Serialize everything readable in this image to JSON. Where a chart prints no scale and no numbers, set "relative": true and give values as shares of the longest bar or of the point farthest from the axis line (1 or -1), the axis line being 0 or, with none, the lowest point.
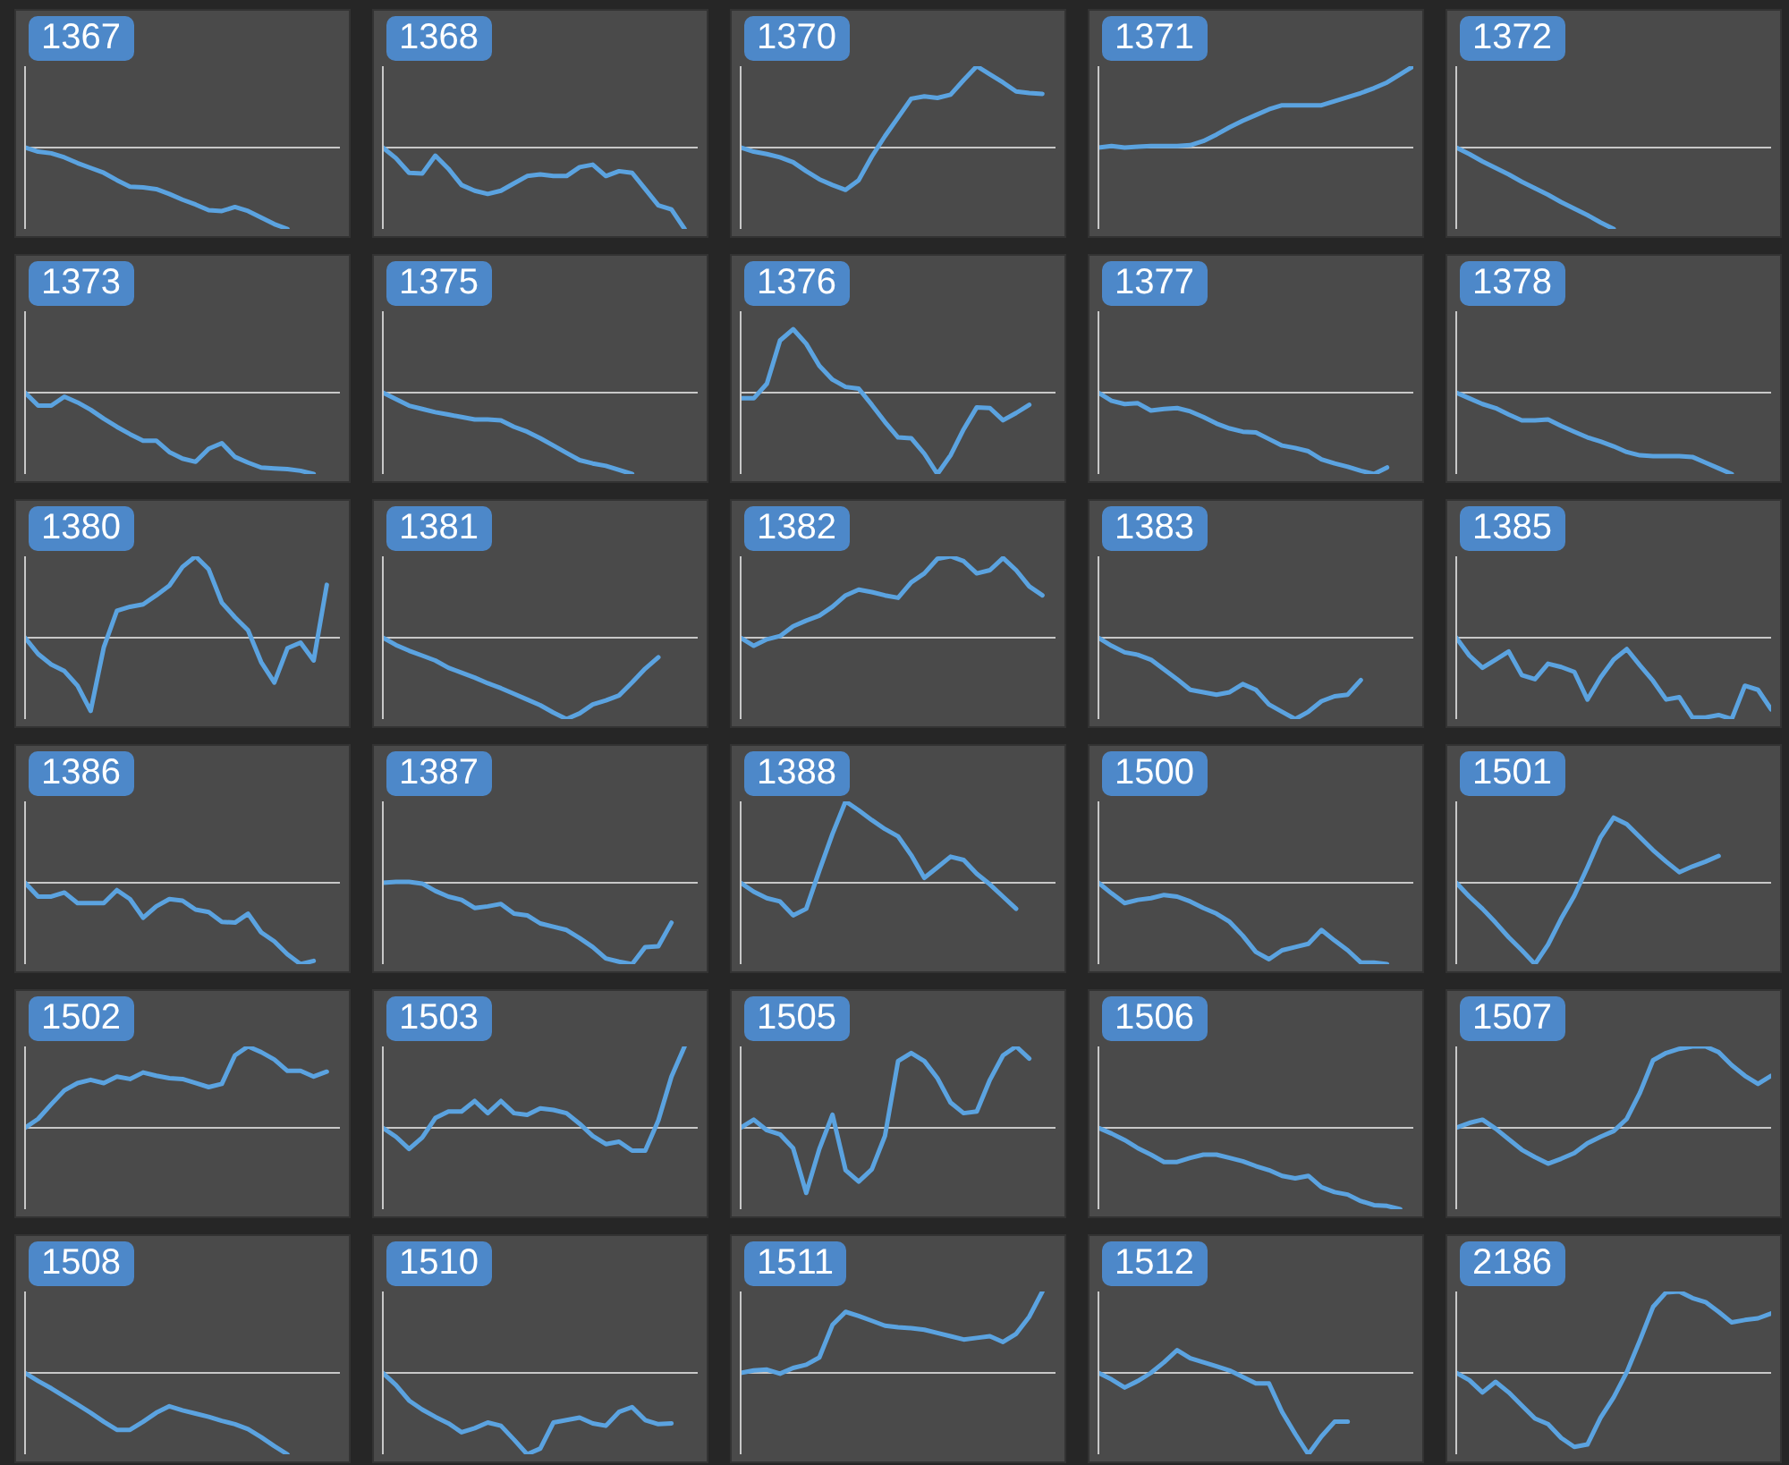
{
  "chart_data": [
    {
      "type": "line",
      "title": "1367",
      "relative": true,
      "color": "#5ba3e0",
      "categories": [
        null,
        null,
        null,
        null,
        null,
        null,
        null,
        null,
        null,
        null,
        null,
        null,
        null,
        null,
        null,
        null,
        null,
        null,
        null,
        null,
        null,
        null,
        null,
        null,
        null
      ],
      "values": [
        0,
        -0.05,
        -0.07,
        -0.12,
        -0.19,
        -0.25,
        -0.31,
        -0.4,
        -0.48,
        -0.49,
        -0.51,
        -0.57,
        -0.64,
        -0.7,
        -0.77,
        -0.78,
        -0.73,
        -0.78,
        -0.86,
        -0.94,
        -1,
        null,
        null,
        null,
        null
      ]
    },
    {
      "type": "line",
      "title": "1368",
      "relative": true,
      "color": "#5ba3e0",
      "categories": [
        null,
        null,
        null,
        null,
        null,
        null,
        null,
        null,
        null,
        null,
        null,
        null,
        null,
        null,
        null,
        null,
        null,
        null,
        null,
        null,
        null,
        null,
        null,
        null,
        null
      ],
      "values": [
        0,
        -0.13,
        -0.31,
        -0.32,
        -0.1,
        -0.26,
        -0.46,
        -0.53,
        -0.57,
        -0.53,
        -0.44,
        -0.35,
        -0.33,
        -0.35,
        -0.35,
        -0.24,
        -0.21,
        -0.35,
        -0.29,
        -0.31,
        -0.51,
        -0.71,
        -0.76,
        -1,
        null
      ]
    },
    {
      "type": "line",
      "title": "1370",
      "relative": true,
      "color": "#5ba3e0",
      "categories": [
        null,
        null,
        null,
        null,
        null,
        null,
        null,
        null,
        null,
        null,
        null,
        null,
        null,
        null,
        null,
        null,
        null,
        null,
        null,
        null,
        null,
        null,
        null,
        null,
        null
      ],
      "values": [
        0,
        -0.05,
        -0.08,
        -0.12,
        -0.18,
        -0.29,
        -0.39,
        -0.46,
        -0.52,
        -0.4,
        -0.11,
        0.14,
        0.37,
        0.6,
        0.63,
        0.61,
        0.65,
        0.83,
        1,
        0.9,
        0.8,
        0.69,
        0.67,
        0.66,
        null
      ]
    },
    {
      "type": "line",
      "title": "1371",
      "relative": true,
      "color": "#5ba3e0",
      "categories": [
        null,
        null,
        null,
        null,
        null,
        null,
        null,
        null,
        null,
        null,
        null,
        null,
        null,
        null,
        null,
        null,
        null,
        null,
        null,
        null,
        null,
        null,
        null,
        null,
        null
      ],
      "values": [
        0,
        0.02,
        0,
        0.01,
        0.02,
        0.02,
        0.02,
        0.03,
        0.08,
        0.16,
        0.25,
        0.33,
        0.4,
        0.47,
        0.52,
        0.52,
        0.52,
        0.52,
        0.57,
        0.62,
        0.67,
        0.73,
        0.8,
        0.9,
        1
      ]
    },
    {
      "type": "line",
      "title": "1372",
      "relative": true,
      "color": "#5ba3e0",
      "categories": [
        null,
        null,
        null,
        null,
        null,
        null,
        null,
        null,
        null,
        null,
        null,
        null,
        null,
        null,
        null,
        null,
        null,
        null,
        null,
        null,
        null,
        null,
        null,
        null,
        null
      ],
      "values": [
        0,
        -0.08,
        -0.17,
        -0.25,
        -0.33,
        -0.42,
        -0.5,
        -0.58,
        -0.67,
        -0.75,
        -0.83,
        -0.92,
        -1,
        null,
        null,
        null,
        null,
        null,
        null,
        null,
        null,
        null,
        null,
        null,
        null
      ]
    },
    {
      "type": "line",
      "title": "1373",
      "relative": true,
      "color": "#5ba3e0",
      "categories": [
        null,
        null,
        null,
        null,
        null,
        null,
        null,
        null,
        null,
        null,
        null,
        null,
        null,
        null,
        null,
        null,
        null,
        null,
        null,
        null,
        null,
        null,
        null,
        null,
        null
      ],
      "values": [
        0,
        -0.16,
        -0.16,
        -0.05,
        -0.12,
        -0.21,
        -0.32,
        -0.42,
        -0.51,
        -0.59,
        -0.59,
        -0.73,
        -0.81,
        -0.85,
        -0.69,
        -0.62,
        -0.79,
        -0.86,
        -0.92,
        -0.93,
        -0.94,
        -0.96,
        -1,
        null,
        null
      ]
    },
    {
      "type": "line",
      "title": "1375",
      "relative": true,
      "color": "#5ba3e0",
      "categories": [
        null,
        null,
        null,
        null,
        null,
        null,
        null,
        null,
        null,
        null,
        null,
        null,
        null,
        null,
        null,
        null,
        null,
        null,
        null,
        null,
        null,
        null,
        null,
        null,
        null
      ],
      "values": [
        0,
        -0.08,
        -0.16,
        -0.2,
        -0.24,
        -0.27,
        -0.3,
        -0.33,
        -0.33,
        -0.34,
        -0.42,
        -0.48,
        -0.56,
        -0.65,
        -0.74,
        -0.83,
        -0.87,
        -0.9,
        -0.95,
        -1,
        null,
        null,
        null,
        null,
        null
      ]
    },
    {
      "type": "line",
      "title": "1376",
      "relative": true,
      "color": "#5ba3e0",
      "categories": [
        null,
        null,
        null,
        null,
        null,
        null,
        null,
        null,
        null,
        null,
        null,
        null,
        null,
        null,
        null,
        null,
        null,
        null,
        null,
        null,
        null,
        null,
        null,
        null,
        null
      ],
      "values": [
        -0.07,
        -0.07,
        0.11,
        0.64,
        0.78,
        0.6,
        0.33,
        0.16,
        0.07,
        0.05,
        -0.15,
        -0.36,
        -0.55,
        -0.56,
        -0.75,
        -1,
        -0.77,
        -0.45,
        -0.18,
        -0.19,
        -0.34,
        -0.25,
        -0.15,
        null,
        null
      ]
    },
    {
      "type": "line",
      "title": "1377",
      "relative": true,
      "color": "#5ba3e0",
      "categories": [
        null,
        null,
        null,
        null,
        null,
        null,
        null,
        null,
        null,
        null,
        null,
        null,
        null,
        null,
        null,
        null,
        null,
        null,
        null,
        null,
        null,
        null,
        null,
        null,
        null
      ],
      "values": [
        0,
        -0.1,
        -0.14,
        -0.13,
        -0.22,
        -0.2,
        -0.19,
        -0.23,
        -0.3,
        -0.38,
        -0.44,
        -0.48,
        -0.49,
        -0.57,
        -0.65,
        -0.68,
        -0.72,
        -0.82,
        -0.87,
        -0.91,
        -0.96,
        -1,
        -0.92,
        null,
        null
      ]
    },
    {
      "type": "line",
      "title": "1378",
      "relative": true,
      "color": "#5ba3e0",
      "categories": [
        null,
        null,
        null,
        null,
        null,
        null,
        null,
        null,
        null,
        null,
        null,
        null,
        null,
        null,
        null,
        null,
        null,
        null,
        null,
        null,
        null,
        null,
        null,
        null,
        null
      ],
      "values": [
        0,
        -0.07,
        -0.14,
        -0.19,
        -0.27,
        -0.34,
        -0.34,
        -0.33,
        -0.41,
        -0.48,
        -0.55,
        -0.6,
        -0.66,
        -0.73,
        -0.77,
        -0.78,
        -0.78,
        -0.78,
        -0.79,
        -0.86,
        -0.93,
        -1,
        null,
        null,
        null
      ]
    },
    {
      "type": "line",
      "title": "1380",
      "relative": true,
      "color": "#5ba3e0",
      "categories": [
        null,
        null,
        null,
        null,
        null,
        null,
        null,
        null,
        null,
        null,
        null,
        null,
        null,
        null,
        null,
        null,
        null,
        null,
        null,
        null,
        null,
        null,
        null,
        null,
        null
      ],
      "values": [
        0,
        -0.2,
        -0.33,
        -0.41,
        -0.59,
        -0.9,
        -0.12,
        0.33,
        0.38,
        0.41,
        0.52,
        0.64,
        0.87,
        1,
        0.84,
        0.43,
        0.25,
        0.09,
        -0.3,
        -0.55,
        -0.13,
        -0.06,
        -0.28,
        0.65,
        null
      ]
    },
    {
      "type": "line",
      "title": "1381",
      "relative": true,
      "color": "#5ba3e0",
      "categories": [
        null,
        null,
        null,
        null,
        null,
        null,
        null,
        null,
        null,
        null,
        null,
        null,
        null,
        null,
        null,
        null,
        null,
        null,
        null,
        null,
        null,
        null,
        null,
        null,
        null
      ],
      "values": [
        0,
        -0.09,
        -0.16,
        -0.22,
        -0.28,
        -0.37,
        -0.43,
        -0.49,
        -0.56,
        -0.62,
        -0.69,
        -0.76,
        -0.83,
        -0.92,
        -1,
        -0.93,
        -0.82,
        -0.77,
        -0.71,
        -0.55,
        -0.38,
        -0.24,
        null,
        null,
        null
      ]
    },
    {
      "type": "line",
      "title": "1382",
      "relative": true,
      "color": "#5ba3e0",
      "categories": [
        null,
        null,
        null,
        null,
        null,
        null,
        null,
        null,
        null,
        null,
        null,
        null,
        null,
        null,
        null,
        null,
        null,
        null,
        null,
        null,
        null,
        null,
        null,
        null,
        null
      ],
      "values": [
        0,
        -0.1,
        -0.02,
        0.02,
        0.14,
        0.21,
        0.27,
        0.38,
        0.52,
        0.59,
        0.56,
        0.52,
        0.49,
        0.68,
        0.79,
        0.97,
        1,
        0.94,
        0.79,
        0.83,
        0.98,
        0.83,
        0.63,
        0.52,
        null
      ]
    },
    {
      "type": "line",
      "title": "1383",
      "relative": true,
      "color": "#5ba3e0",
      "categories": [
        null,
        null,
        null,
        null,
        null,
        null,
        null,
        null,
        null,
        null,
        null,
        null,
        null,
        null,
        null,
        null,
        null,
        null,
        null,
        null,
        null,
        null,
        null,
        null,
        null
      ],
      "values": [
        0,
        -0.1,
        -0.18,
        -0.21,
        -0.27,
        -0.39,
        -0.51,
        -0.64,
        -0.67,
        -0.7,
        -0.67,
        -0.57,
        -0.64,
        -0.82,
        -0.91,
        -1,
        -0.91,
        -0.78,
        -0.72,
        -0.7,
        -0.52,
        null,
        null,
        null,
        null
      ]
    },
    {
      "type": "line",
      "title": "1385",
      "relative": true,
      "color": "#5ba3e0",
      "categories": [
        null,
        null,
        null,
        null,
        null,
        null,
        null,
        null,
        null,
        null,
        null,
        null,
        null,
        null,
        null,
        null,
        null,
        null,
        null,
        null,
        null,
        null,
        null,
        null,
        null
      ],
      "values": [
        0,
        -0.22,
        -0.37,
        -0.27,
        -0.17,
        -0.46,
        -0.51,
        -0.32,
        -0.36,
        -0.42,
        -0.76,
        -0.49,
        -0.27,
        -0.14,
        -0.34,
        -0.53,
        -0.76,
        -0.73,
        -0.98,
        -0.98,
        -0.95,
        -1,
        -0.59,
        -0.64,
        -0.88
      ]
    },
    {
      "type": "line",
      "title": "1386",
      "relative": true,
      "color": "#5ba3e0",
      "categories": [
        null,
        null,
        null,
        null,
        null,
        null,
        null,
        null,
        null,
        null,
        null,
        null,
        null,
        null,
        null,
        null,
        null,
        null,
        null,
        null,
        null,
        null,
        null,
        null,
        null
      ],
      "values": [
        0,
        -0.17,
        -0.17,
        -0.12,
        -0.25,
        -0.25,
        -0.25,
        -0.09,
        -0.2,
        -0.43,
        -0.29,
        -0.2,
        -0.22,
        -0.33,
        -0.36,
        -0.48,
        -0.49,
        -0.38,
        -0.61,
        -0.72,
        -0.88,
        -1,
        -0.96,
        null,
        null
      ]
    },
    {
      "type": "line",
      "title": "1387",
      "relative": true,
      "color": "#5ba3e0",
      "categories": [
        null,
        null,
        null,
        null,
        null,
        null,
        null,
        null,
        null,
        null,
        null,
        null,
        null,
        null,
        null,
        null,
        null,
        null,
        null,
        null,
        null,
        null,
        null,
        null,
        null
      ],
      "values": [
        0,
        0.01,
        0.01,
        -0.01,
        -0.1,
        -0.17,
        -0.21,
        -0.31,
        -0.29,
        -0.26,
        -0.38,
        -0.4,
        -0.5,
        -0.54,
        -0.58,
        -0.68,
        -0.79,
        -0.93,
        -0.97,
        -1,
        -0.79,
        -0.78,
        -0.49,
        null,
        null
      ]
    },
    {
      "type": "line",
      "title": "1388",
      "relative": true,
      "color": "#5ba3e0",
      "categories": [
        null,
        null,
        null,
        null,
        null,
        null,
        null,
        null,
        null,
        null,
        null,
        null,
        null,
        null,
        null,
        null,
        null,
        null,
        null,
        null,
        null,
        null,
        null,
        null,
        null
      ],
      "values": [
        0,
        -0.11,
        -0.19,
        -0.23,
        -0.4,
        -0.32,
        0.15,
        0.6,
        1,
        0.89,
        0.77,
        0.66,
        0.57,
        0.34,
        0.06,
        0.19,
        0.32,
        0.28,
        0.11,
        -0.02,
        -0.17,
        -0.32,
        null,
        null,
        null
      ]
    },
    {
      "type": "line",
      "title": "1500",
      "relative": true,
      "color": "#5ba3e0",
      "categories": [
        null,
        null,
        null,
        null,
        null,
        null,
        null,
        null,
        null,
        null,
        null,
        null,
        null,
        null,
        null,
        null,
        null,
        null,
        null,
        null,
        null,
        null,
        null,
        null,
        null
      ],
      "values": [
        0,
        -0.13,
        -0.25,
        -0.21,
        -0.19,
        -0.15,
        -0.17,
        -0.23,
        -0.31,
        -0.38,
        -0.48,
        -0.65,
        -0.85,
        -0.94,
        -0.83,
        -0.79,
        -0.75,
        -0.58,
        -0.71,
        -0.83,
        -0.98,
        -0.98,
        -1,
        null,
        null
      ]
    },
    {
      "type": "line",
      "title": "1501",
      "relative": true,
      "color": "#5ba3e0",
      "categories": [
        null,
        null,
        null,
        null,
        null,
        null,
        null,
        null,
        null,
        null,
        null,
        null,
        null,
        null,
        null,
        null,
        null,
        null,
        null,
        null,
        null,
        null,
        null,
        null,
        null
      ],
      "values": [
        0,
        -0.17,
        -0.32,
        -0.49,
        -0.67,
        -0.83,
        -1,
        -0.76,
        -0.44,
        -0.16,
        0.19,
        0.56,
        0.8,
        0.72,
        0.56,
        0.4,
        0.26,
        0.13,
        0.2,
        0.26,
        0.33,
        null,
        null,
        null,
        null
      ]
    },
    {
      "type": "line",
      "title": "1502",
      "relative": true,
      "color": "#5ba3e0",
      "categories": [
        null,
        null,
        null,
        null,
        null,
        null,
        null,
        null,
        null,
        null,
        null,
        null,
        null,
        null,
        null,
        null,
        null,
        null,
        null,
        null,
        null,
        null,
        null,
        null,
        null
      ],
      "values": [
        0,
        0.11,
        0.29,
        0.46,
        0.55,
        0.59,
        0.55,
        0.63,
        0.6,
        0.68,
        0.64,
        0.61,
        0.6,
        0.55,
        0.5,
        0.54,
        0.89,
        1,
        0.93,
        0.84,
        0.7,
        0.7,
        0.63,
        0.69,
        null
      ]
    },
    {
      "type": "line",
      "title": "1503",
      "relative": true,
      "color": "#5ba3e0",
      "categories": [
        null,
        null,
        null,
        null,
        null,
        null,
        null,
        null,
        null,
        null,
        null,
        null,
        null,
        null,
        null,
        null,
        null,
        null,
        null,
        null,
        null,
        null,
        null,
        null,
        null
      ],
      "values": [
        0,
        -0.11,
        -0.26,
        -0.12,
        0.12,
        0.2,
        0.2,
        0.33,
        0.18,
        0.33,
        0.18,
        0.16,
        0.24,
        0.22,
        0.18,
        0.05,
        -0.1,
        -0.2,
        -0.17,
        -0.28,
        -0.28,
        0.09,
        0.63,
        1,
        null
      ]
    },
    {
      "type": "line",
      "title": "1505",
      "relative": true,
      "color": "#5ba3e0",
      "categories": [
        null,
        null,
        null,
        null,
        null,
        null,
        null,
        null,
        null,
        null,
        null,
        null,
        null,
        null,
        null,
        null,
        null,
        null,
        null,
        null,
        null,
        null,
        null,
        null,
        null
      ],
      "values": [
        0,
        0.1,
        -0.03,
        -0.08,
        -0.25,
        -0.8,
        -0.26,
        0.16,
        -0.52,
        -0.66,
        -0.51,
        -0.1,
        0.82,
        0.92,
        0.82,
        0.61,
        0.31,
        0.18,
        0.2,
        0.59,
        0.89,
        1,
        0.85,
        null,
        null
      ]
    },
    {
      "type": "line",
      "title": "1506",
      "relative": true,
      "color": "#5ba3e0",
      "categories": [
        null,
        null,
        null,
        null,
        null,
        null,
        null,
        null,
        null,
        null,
        null,
        null,
        null,
        null,
        null,
        null,
        null,
        null,
        null,
        null,
        null,
        null,
        null,
        null,
        null
      ],
      "values": [
        0,
        -0.07,
        -0.15,
        -0.25,
        -0.33,
        -0.42,
        -0.42,
        -0.37,
        -0.33,
        -0.33,
        -0.37,
        -0.41,
        -0.47,
        -0.52,
        -0.59,
        -0.62,
        -0.59,
        -0.73,
        -0.79,
        -0.82,
        -0.9,
        -0.95,
        -0.96,
        -1,
        null
      ]
    },
    {
      "type": "line",
      "title": "1507",
      "relative": true,
      "color": "#5ba3e0",
      "categories": [
        null,
        null,
        null,
        null,
        null,
        null,
        null,
        null,
        null,
        null,
        null,
        null,
        null,
        null,
        null,
        null,
        null,
        null,
        null,
        null,
        null,
        null,
        null,
        null,
        null
      ],
      "values": [
        0,
        0.06,
        0.1,
        -0.01,
        -0.14,
        -0.27,
        -0.36,
        -0.44,
        -0.38,
        -0.31,
        -0.19,
        -0.11,
        -0.04,
        0.11,
        0.43,
        0.83,
        0.92,
        0.97,
        1,
        1,
        0.93,
        0.77,
        0.64,
        0.54,
        0.64
      ]
    },
    {
      "type": "line",
      "title": "1508",
      "relative": true,
      "color": "#5ba3e0",
      "categories": [
        null,
        null,
        null,
        null,
        null,
        null,
        null,
        null,
        null,
        null,
        null,
        null,
        null,
        null,
        null,
        null,
        null,
        null,
        null,
        null,
        null,
        null,
        null,
        null,
        null
      ],
      "values": [
        0,
        -0.1,
        -0.19,
        -0.29,
        -0.39,
        -0.49,
        -0.6,
        -0.7,
        -0.7,
        -0.6,
        -0.49,
        -0.41,
        -0.46,
        -0.5,
        -0.54,
        -0.59,
        -0.63,
        -0.69,
        -0.79,
        -0.9,
        -1,
        null,
        null,
        null,
        null
      ]
    },
    {
      "type": "line",
      "title": "1510",
      "relative": true,
      "color": "#5ba3e0",
      "categories": [
        null,
        null,
        null,
        null,
        null,
        null,
        null,
        null,
        null,
        null,
        null,
        null,
        null,
        null,
        null,
        null,
        null,
        null,
        null,
        null,
        null,
        null,
        null,
        null,
        null
      ],
      "values": [
        0,
        -0.15,
        -0.34,
        -0.45,
        -0.54,
        -0.62,
        -0.73,
        -0.68,
        -0.61,
        -0.65,
        -0.82,
        -1,
        -0.93,
        -0.61,
        -0.58,
        -0.55,
        -0.62,
        -0.65,
        -0.48,
        -0.42,
        -0.58,
        -0.63,
        -0.62,
        null,
        null
      ]
    },
    {
      "type": "line",
      "title": "1511",
      "relative": true,
      "color": "#5ba3e0",
      "categories": [
        null,
        null,
        null,
        null,
        null,
        null,
        null,
        null,
        null,
        null,
        null,
        null,
        null,
        null,
        null,
        null,
        null,
        null,
        null,
        null,
        null,
        null,
        null,
        null,
        null
      ],
      "values": [
        0,
        0.03,
        0.04,
        -0.01,
        0.06,
        0.1,
        0.19,
        0.59,
        0.75,
        0.7,
        0.64,
        0.58,
        0.56,
        0.55,
        0.53,
        0.49,
        0.45,
        0.41,
        0.43,
        0.45,
        0.38,
        0.48,
        0.69,
        1,
        null
      ]
    },
    {
      "type": "line",
      "title": "1512",
      "relative": true,
      "color": "#5ba3e0",
      "categories": [
        null,
        null,
        null,
        null,
        null,
        null,
        null,
        null,
        null,
        null,
        null,
        null,
        null,
        null,
        null,
        null,
        null,
        null,
        null,
        null,
        null,
        null,
        null,
        null,
        null
      ],
      "values": [
        0,
        -0.08,
        -0.18,
        -0.1,
        0,
        0.13,
        0.28,
        0.18,
        0.13,
        0.08,
        0.03,
        -0.05,
        -0.13,
        -0.13,
        -0.48,
        -0.75,
        -1,
        -0.78,
        -0.6,
        -0.6,
        null,
        null,
        null,
        null,
        null
      ]
    },
    {
      "type": "line",
      "title": "2186",
      "relative": true,
      "color": "#5ba3e0",
      "categories": [
        null,
        null,
        null,
        null,
        null,
        null,
        null,
        null,
        null,
        null,
        null,
        null,
        null,
        null,
        null,
        null,
        null,
        null,
        null,
        null,
        null,
        null,
        null,
        null,
        null
      ],
      "values": [
        0,
        -0.09,
        -0.24,
        -0.11,
        -0.24,
        -0.4,
        -0.56,
        -0.63,
        -0.8,
        -0.91,
        -0.88,
        -0.55,
        -0.3,
        0.01,
        0.4,
        0.81,
        0.99,
        1,
        0.92,
        0.87,
        0.75,
        0.62,
        0.65,
        0.67,
        0.73
      ]
    }
  ]
}
